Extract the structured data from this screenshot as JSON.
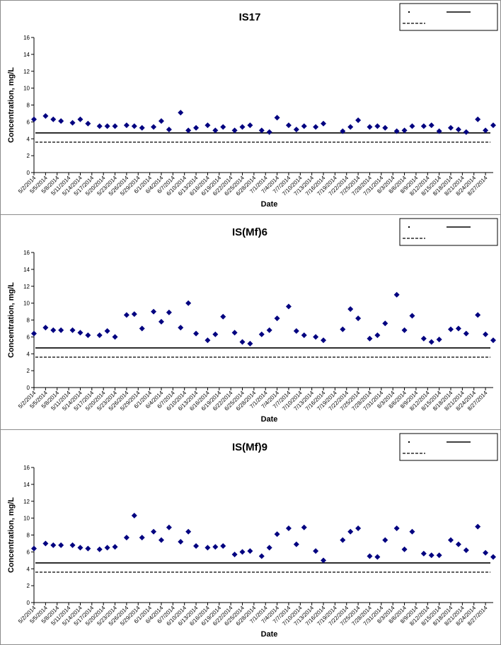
{
  "charts": [
    {
      "type": "scatter",
      "title": "IS17",
      "xlabel": "Date",
      "ylabel": "Concentration, mg/L",
      "ylim": [
        0,
        16
      ],
      "yticks": [
        0,
        2,
        4,
        6,
        8,
        10,
        12,
        14,
        16
      ],
      "date_start": "5/2/2014",
      "date_end": "8/29/2014",
      "tick_labels": [
        "5/2/2014",
        "5/5/2014",
        "5/8/2014",
        "5/11/2014",
        "5/14/2014",
        "5/17/2014",
        "5/20/2014",
        "5/23/2014",
        "5/26/2014",
        "5/29/2014",
        "6/1/2014",
        "6/4/2014",
        "6/7/2014",
        "6/10/2014",
        "6/13/2014",
        "6/16/2014",
        "6/19/2014",
        "6/22/2014",
        "6/25/2014",
        "6/28/2014",
        "7/1/2014",
        "7/4/2014",
        "7/7/2014",
        "7/10/2014",
        "7/13/2014",
        "7/16/2014",
        "7/19/2014",
        "7/22/2014",
        "7/25/2014",
        "7/28/2014",
        "7/31/2014",
        "8/3/2014",
        "8/6/2014",
        "8/9/2014",
        "8/12/2014",
        "8/15/2014",
        "8/18/2014",
        "8/21/2014",
        "8/24/2014",
        "8/27/2014"
      ],
      "reference_lines": [
        {
          "style": "solid",
          "value": 4.7
        },
        {
          "style": "dashed",
          "value": 3.6
        }
      ],
      "marker_color": "#000080",
      "legend_position": "top-right",
      "points": [
        {
          "x": "5/2/2014",
          "y": 6.3
        },
        {
          "x": "5/5/2014",
          "y": 6.7
        },
        {
          "x": "5/7/2014",
          "y": 6.3
        },
        {
          "x": "5/9/2014",
          "y": 6.1
        },
        {
          "x": "5/12/2014",
          "y": 5.9
        },
        {
          "x": "5/14/2014",
          "y": 6.3
        },
        {
          "x": "5/16/2014",
          "y": 5.8
        },
        {
          "x": "5/19/2014",
          "y": 5.5
        },
        {
          "x": "5/21/2014",
          "y": 5.5
        },
        {
          "x": "5/23/2014",
          "y": 5.5
        },
        {
          "x": "5/26/2014",
          "y": 5.6
        },
        {
          "x": "5/28/2014",
          "y": 5.5
        },
        {
          "x": "5/30/2014",
          "y": 5.3
        },
        {
          "x": "6/2/2014",
          "y": 5.4
        },
        {
          "x": "6/4/2014",
          "y": 6.1
        },
        {
          "x": "6/6/2014",
          "y": 5.1
        },
        {
          "x": "6/9/2014",
          "y": 7.1
        },
        {
          "x": "6/11/2014",
          "y": 5.0
        },
        {
          "x": "6/13/2014",
          "y": 5.3
        },
        {
          "x": "6/16/2014",
          "y": 5.6
        },
        {
          "x": "6/18/2014",
          "y": 5.0
        },
        {
          "x": "6/20/2014",
          "y": 5.4
        },
        {
          "x": "6/23/2014",
          "y": 5.0
        },
        {
          "x": "6/25/2014",
          "y": 5.4
        },
        {
          "x": "6/27/2014",
          "y": 5.6
        },
        {
          "x": "6/30/2014",
          "y": 5.0
        },
        {
          "x": "7/2/2014",
          "y": 4.8
        },
        {
          "x": "7/4/2014",
          "y": 6.5
        },
        {
          "x": "7/7/2014",
          "y": 5.6
        },
        {
          "x": "7/9/2014",
          "y": 5.1
        },
        {
          "x": "7/11/2014",
          "y": 5.5
        },
        {
          "x": "7/14/2014",
          "y": 5.4
        },
        {
          "x": "7/16/2014",
          "y": 5.8
        },
        {
          "x": "7/21/2014",
          "y": 4.9
        },
        {
          "x": "7/23/2014",
          "y": 5.4
        },
        {
          "x": "7/25/2014",
          "y": 6.2
        },
        {
          "x": "7/28/2014",
          "y": 5.4
        },
        {
          "x": "7/30/2014",
          "y": 5.5
        },
        {
          "x": "8/1/2014",
          "y": 5.3
        },
        {
          "x": "8/4/2014",
          "y": 4.9
        },
        {
          "x": "8/6/2014",
          "y": 5.0
        },
        {
          "x": "8/8/2014",
          "y": 5.5
        },
        {
          "x": "8/11/2014",
          "y": 5.5
        },
        {
          "x": "8/13/2014",
          "y": 5.6
        },
        {
          "x": "8/15/2014",
          "y": 4.9
        },
        {
          "x": "8/18/2014",
          "y": 5.3
        },
        {
          "x": "8/20/2014",
          "y": 5.1
        },
        {
          "x": "8/22/2014",
          "y": 4.8
        },
        {
          "x": "8/25/2014",
          "y": 6.3
        },
        {
          "x": "8/27/2014",
          "y": 5.0
        },
        {
          "x": "8/29/2014",
          "y": 5.6
        }
      ]
    },
    {
      "type": "scatter",
      "title": "IS(Mf)6",
      "xlabel": "Date",
      "ylabel": "Concentration, mg/L",
      "ylim": [
        0,
        16
      ],
      "yticks": [
        0,
        2,
        4,
        6,
        8,
        10,
        12,
        14,
        16
      ],
      "date_start": "5/2/2014",
      "date_end": "8/29/2014",
      "tick_labels": [
        "5/2/2014",
        "5/5/2014",
        "5/8/2014",
        "5/11/2014",
        "5/14/2014",
        "5/17/2014",
        "5/20/2014",
        "5/23/2014",
        "5/26/2014",
        "5/29/2014",
        "6/1/2014",
        "6/4/2014",
        "6/7/2014",
        "6/10/2014",
        "6/13/2014",
        "6/16/2014",
        "6/19/2014",
        "6/22/2014",
        "6/25/2014",
        "6/28/2014",
        "7/1/2014",
        "7/4/2014",
        "7/7/2014",
        "7/10/2014",
        "7/13/2014",
        "7/16/2014",
        "7/19/2014",
        "7/22/2014",
        "7/25/2014",
        "7/28/2014",
        "7/31/2014",
        "8/3/2014",
        "8/6/2014",
        "8/9/2014",
        "8/12/2014",
        "8/15/2014",
        "8/18/2014",
        "8/21/2014",
        "8/24/2014",
        "8/27/2014"
      ],
      "reference_lines": [
        {
          "style": "solid",
          "value": 4.7
        },
        {
          "style": "dashed",
          "value": 3.6
        }
      ],
      "marker_color": "#000080",
      "legend_position": "top-right",
      "points": [
        {
          "x": "5/2/2014",
          "y": 6.4
        },
        {
          "x": "5/5/2014",
          "y": 7.1
        },
        {
          "x": "5/7/2014",
          "y": 6.8
        },
        {
          "x": "5/9/2014",
          "y": 6.8
        },
        {
          "x": "5/12/2014",
          "y": 6.8
        },
        {
          "x": "5/14/2014",
          "y": 6.5
        },
        {
          "x": "5/16/2014",
          "y": 6.2
        },
        {
          "x": "5/19/2014",
          "y": 6.2
        },
        {
          "x": "5/21/2014",
          "y": 6.7
        },
        {
          "x": "5/23/2014",
          "y": 6.0
        },
        {
          "x": "5/26/2014",
          "y": 8.6
        },
        {
          "x": "5/28/2014",
          "y": 8.7
        },
        {
          "x": "5/30/2014",
          "y": 7.0
        },
        {
          "x": "6/2/2014",
          "y": 9.0
        },
        {
          "x": "6/4/2014",
          "y": 7.8
        },
        {
          "x": "6/6/2014",
          "y": 8.9
        },
        {
          "x": "6/9/2014",
          "y": 7.1
        },
        {
          "x": "6/11/2014",
          "y": 10.0
        },
        {
          "x": "6/13/2014",
          "y": 6.4
        },
        {
          "x": "6/16/2014",
          "y": 5.6
        },
        {
          "x": "6/18/2014",
          "y": 6.3
        },
        {
          "x": "6/20/2014",
          "y": 8.4
        },
        {
          "x": "6/23/2014",
          "y": 6.5
        },
        {
          "x": "6/25/2014",
          "y": 5.4
        },
        {
          "x": "6/27/2014",
          "y": 5.2
        },
        {
          "x": "6/30/2014",
          "y": 6.3
        },
        {
          "x": "7/2/2014",
          "y": 6.8
        },
        {
          "x": "7/4/2014",
          "y": 8.2
        },
        {
          "x": "7/7/2014",
          "y": 9.6
        },
        {
          "x": "7/9/2014",
          "y": 6.7
        },
        {
          "x": "7/11/2014",
          "y": 6.2
        },
        {
          "x": "7/14/2014",
          "y": 6.0
        },
        {
          "x": "7/16/2014",
          "y": 5.6
        },
        {
          "x": "7/21/2014",
          "y": 6.9
        },
        {
          "x": "7/23/2014",
          "y": 9.3
        },
        {
          "x": "7/25/2014",
          "y": 8.2
        },
        {
          "x": "7/28/2014",
          "y": 5.8
        },
        {
          "x": "7/30/2014",
          "y": 6.2
        },
        {
          "x": "8/1/2014",
          "y": 7.6
        },
        {
          "x": "8/4/2014",
          "y": 11.0
        },
        {
          "x": "8/6/2014",
          "y": 6.8
        },
        {
          "x": "8/8/2014",
          "y": 8.5
        },
        {
          "x": "8/11/2014",
          "y": 5.8
        },
        {
          "x": "8/13/2014",
          "y": 5.4
        },
        {
          "x": "8/15/2014",
          "y": 5.7
        },
        {
          "x": "8/18/2014",
          "y": 6.9
        },
        {
          "x": "8/20/2014",
          "y": 7.0
        },
        {
          "x": "8/22/2014",
          "y": 6.4
        },
        {
          "x": "8/25/2014",
          "y": 8.6
        },
        {
          "x": "8/27/2014",
          "y": 6.3
        },
        {
          "x": "8/29/2014",
          "y": 5.6
        }
      ]
    },
    {
      "type": "scatter",
      "title": "IS(Mf)9",
      "xlabel": "Date",
      "ylabel": "Concentration, mg/L",
      "ylim": [
        0,
        16
      ],
      "yticks": [
        0,
        2,
        4,
        6,
        8,
        10,
        12,
        14,
        16
      ],
      "date_start": "5/2/2014",
      "date_end": "8/29/2014",
      "tick_labels": [
        "5/2/2014",
        "5/5/2014",
        "5/8/2014",
        "5/11/2014",
        "5/14/2014",
        "5/17/2014",
        "5/20/2014",
        "5/23/2014",
        "5/26/2014",
        "5/29/2014",
        "6/1/2014",
        "6/4/2014",
        "6/7/2014",
        "6/10/2014",
        "6/13/2014",
        "6/16/2014",
        "6/19/2014",
        "6/22/2014",
        "6/25/2014",
        "6/28/2014",
        "7/1/2014",
        "7/4/2014",
        "7/7/2014",
        "7/10/2014",
        "7/13/2014",
        "7/16/2014",
        "7/19/2014",
        "7/22/2014",
        "7/25/2014",
        "7/28/2014",
        "7/31/2014",
        "8/3/2014",
        "8/6/2014",
        "8/9/2014",
        "8/12/2014",
        "8/15/2014",
        "8/18/2014",
        "8/21/2014",
        "8/24/2014",
        "8/27/2014"
      ],
      "reference_lines": [
        {
          "style": "solid",
          "value": 4.7
        },
        {
          "style": "dashed",
          "value": 3.6
        }
      ],
      "marker_color": "#000080",
      "legend_position": "top-right",
      "points": [
        {
          "x": "5/2/2014",
          "y": 6.4
        },
        {
          "x": "5/5/2014",
          "y": 7.0
        },
        {
          "x": "5/7/2014",
          "y": 6.8
        },
        {
          "x": "5/9/2014",
          "y": 6.8
        },
        {
          "x": "5/12/2014",
          "y": 6.8
        },
        {
          "x": "5/14/2014",
          "y": 6.5
        },
        {
          "x": "5/16/2014",
          "y": 6.4
        },
        {
          "x": "5/19/2014",
          "y": 6.3
        },
        {
          "x": "5/21/2014",
          "y": 6.5
        },
        {
          "x": "5/23/2014",
          "y": 6.6
        },
        {
          "x": "5/26/2014",
          "y": 7.7
        },
        {
          "x": "5/28/2014",
          "y": 10.3
        },
        {
          "x": "5/30/2014",
          "y": 7.7
        },
        {
          "x": "6/2/2014",
          "y": 8.4
        },
        {
          "x": "6/4/2014",
          "y": 7.4
        },
        {
          "x": "6/6/2014",
          "y": 8.9
        },
        {
          "x": "6/9/2014",
          "y": 7.2
        },
        {
          "x": "6/11/2014",
          "y": 8.4
        },
        {
          "x": "6/13/2014",
          "y": 6.7
        },
        {
          "x": "6/16/2014",
          "y": 6.5
        },
        {
          "x": "6/18/2014",
          "y": 6.6
        },
        {
          "x": "6/20/2014",
          "y": 6.7
        },
        {
          "x": "6/23/2014",
          "y": 5.7
        },
        {
          "x": "6/25/2014",
          "y": 6.0
        },
        {
          "x": "6/27/2014",
          "y": 6.1
        },
        {
          "x": "6/30/2014",
          "y": 5.5
        },
        {
          "x": "7/2/2014",
          "y": 6.5
        },
        {
          "x": "7/4/2014",
          "y": 8.1
        },
        {
          "x": "7/7/2014",
          "y": 8.8
        },
        {
          "x": "7/9/2014",
          "y": 6.9
        },
        {
          "x": "7/11/2014",
          "y": 8.9
        },
        {
          "x": "7/14/2014",
          "y": 6.1
        },
        {
          "x": "7/16/2014",
          "y": 5.0
        },
        {
          "x": "7/21/2014",
          "y": 7.4
        },
        {
          "x": "7/23/2014",
          "y": 8.4
        },
        {
          "x": "7/25/2014",
          "y": 8.8
        },
        {
          "x": "7/28/2014",
          "y": 5.5
        },
        {
          "x": "7/30/2014",
          "y": 5.4
        },
        {
          "x": "8/1/2014",
          "y": 7.4
        },
        {
          "x": "8/4/2014",
          "y": 8.8
        },
        {
          "x": "8/6/2014",
          "y": 6.3
        },
        {
          "x": "8/8/2014",
          "y": 8.4
        },
        {
          "x": "8/11/2014",
          "y": 5.8
        },
        {
          "x": "8/13/2014",
          "y": 5.6
        },
        {
          "x": "8/15/2014",
          "y": 5.6
        },
        {
          "x": "8/18/2014",
          "y": 7.4
        },
        {
          "x": "8/20/2014",
          "y": 6.9
        },
        {
          "x": "8/22/2014",
          "y": 6.2
        },
        {
          "x": "8/25/2014",
          "y": 9.0
        },
        {
          "x": "8/27/2014",
          "y": 5.9
        },
        {
          "x": "8/29/2014",
          "y": 5.4
        }
      ]
    }
  ]
}
